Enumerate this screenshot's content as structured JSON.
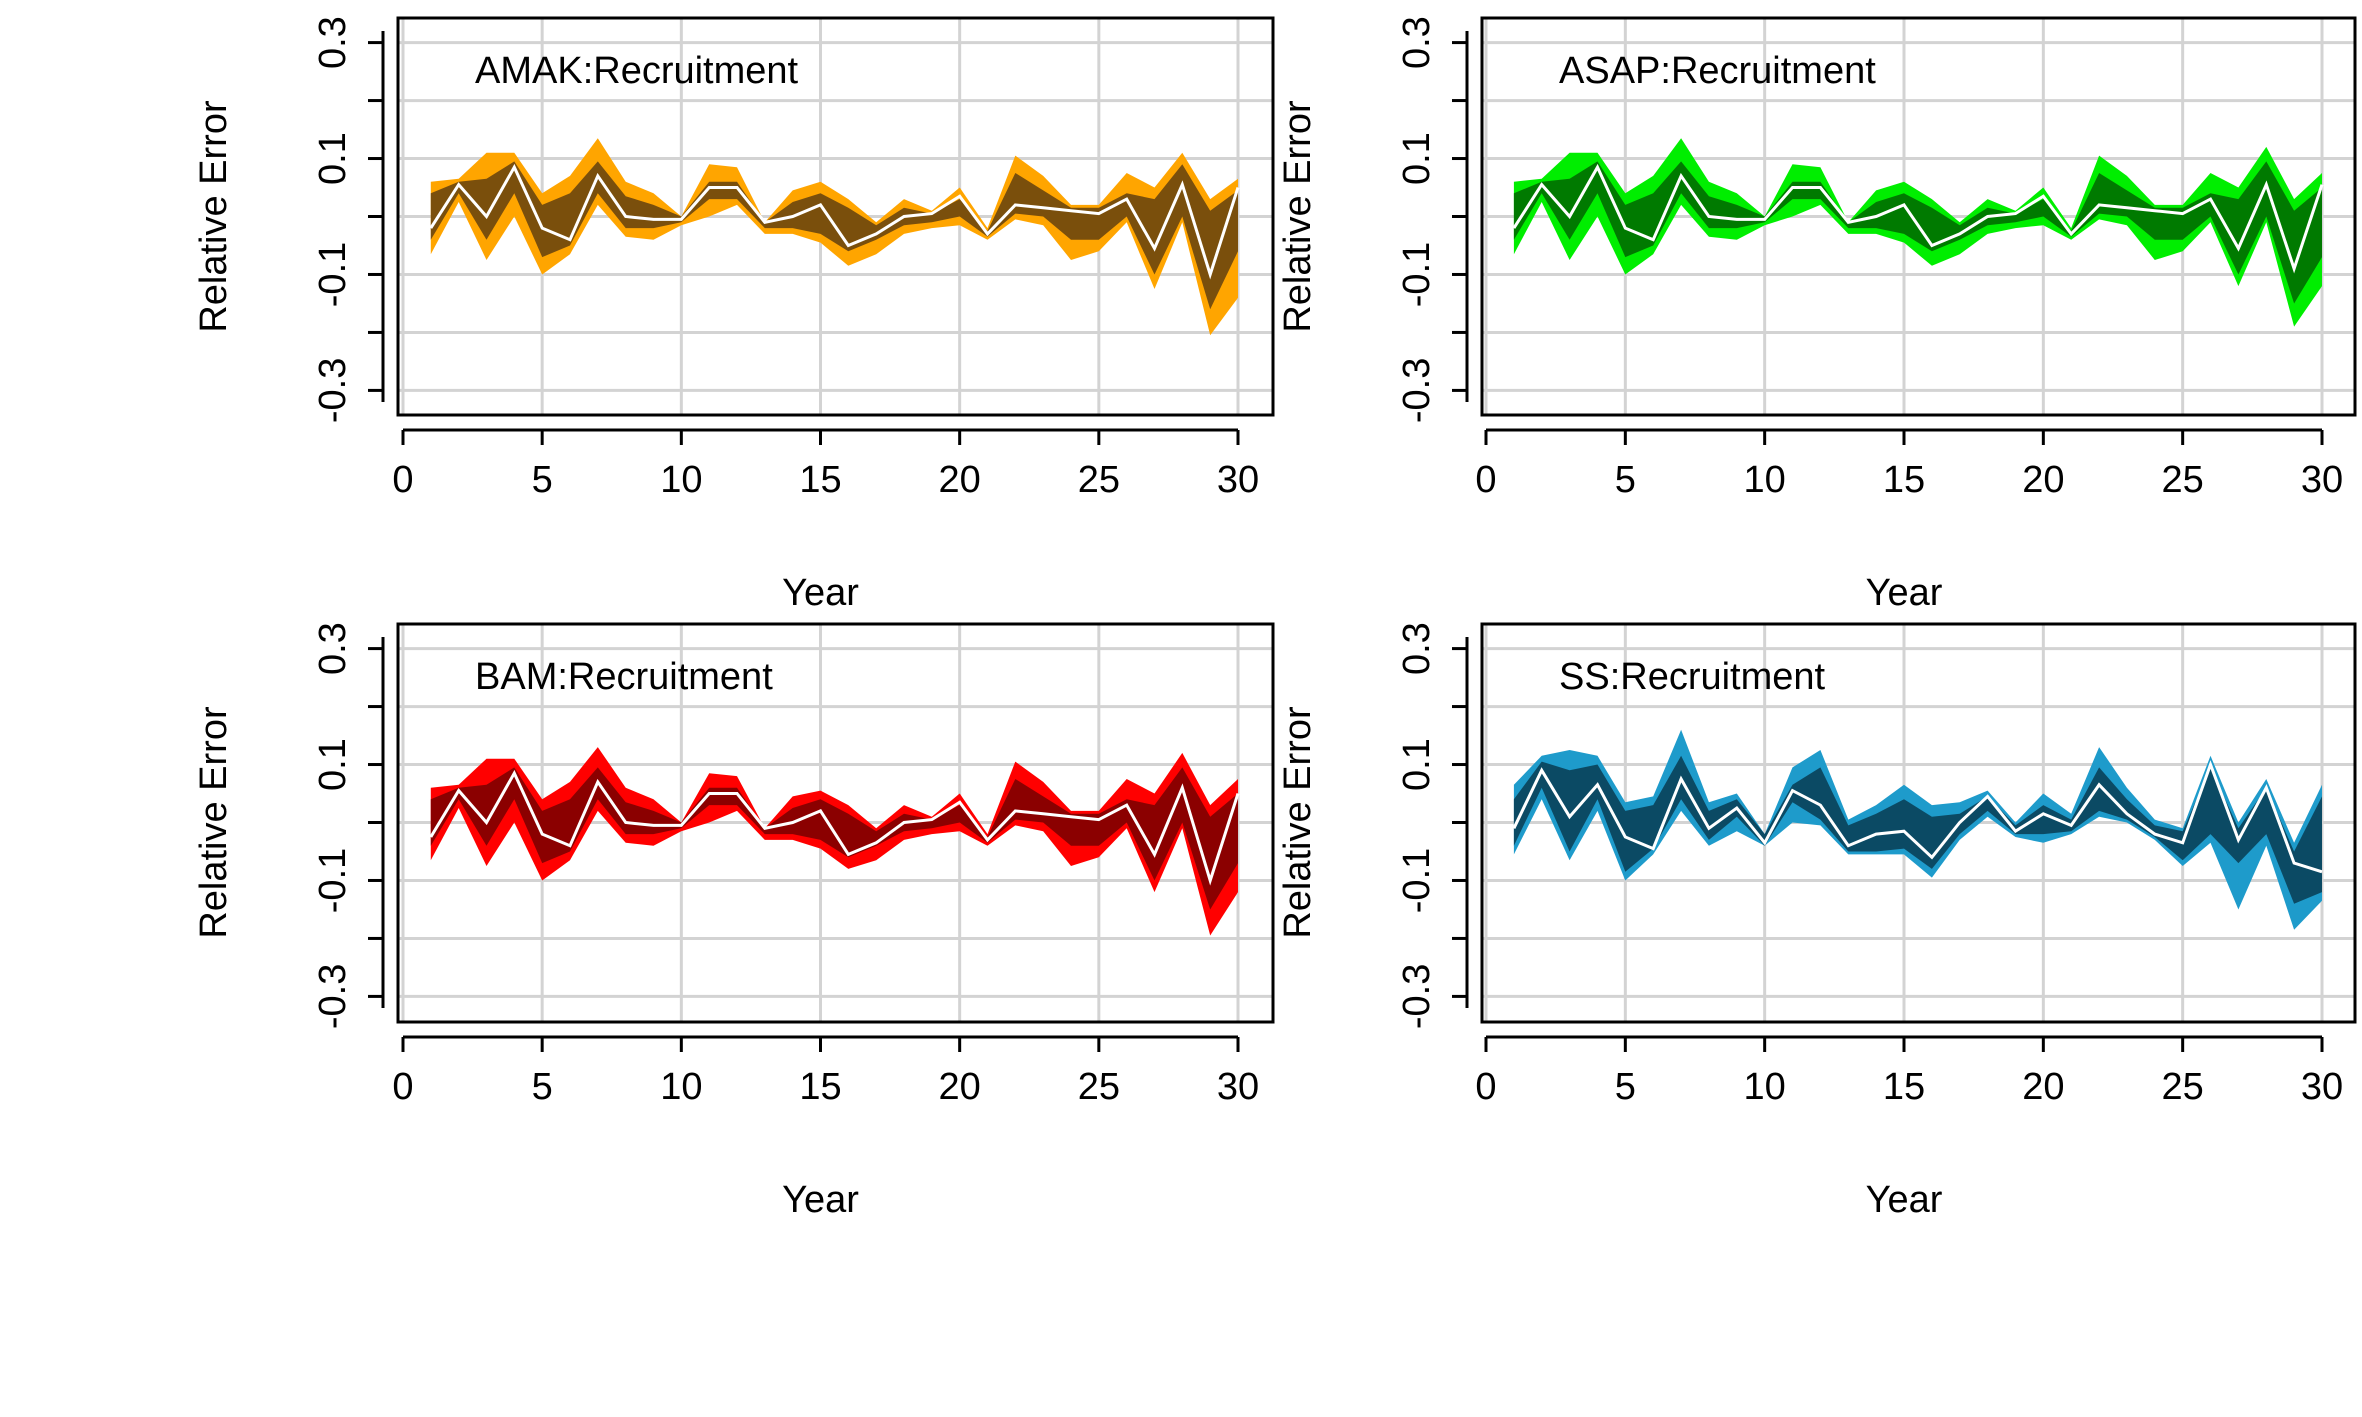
{
  "figure": {
    "background": "#ffffff",
    "grid_color": "#d3d3d3",
    "median_line_color": "#ffffff"
  },
  "chart_data": [
    {
      "type": "area",
      "title": "AMAK:Recruitment",
      "xlabel": "Year",
      "ylabel": "Relative Error",
      "xlim": [
        0,
        30
      ],
      "ylim": [
        -0.32,
        0.32
      ],
      "xticks": [
        "0",
        "5",
        "10",
        "15",
        "20",
        "25",
        "30"
      ],
      "yticks": [
        "-0.3",
        "-0.1",
        "0.1",
        "0.3"
      ],
      "grid": true,
      "colors": {
        "outer": "#FFA500",
        "inner": "#7A4F0C",
        "median": "#ffffff"
      },
      "x": [
        1,
        2,
        3,
        4,
        5,
        6,
        7,
        8,
        9,
        10,
        11,
        12,
        13,
        14,
        15,
        16,
        17,
        18,
        19,
        20,
        21,
        22,
        23,
        24,
        25,
        26,
        27,
        28,
        29,
        30
      ],
      "outer_upper": [
        0.06,
        0.065,
        0.11,
        0.11,
        0.04,
        0.07,
        0.135,
        0.06,
        0.04,
        0.0,
        0.09,
        0.085,
        -0.01,
        0.045,
        0.06,
        0.03,
        -0.01,
        0.03,
        0.01,
        0.05,
        -0.02,
        0.105,
        0.07,
        0.02,
        0.02,
        0.075,
        0.05,
        0.11,
        0.03,
        0.065
      ],
      "inner_upper": [
        0.04,
        0.06,
        0.065,
        0.095,
        0.02,
        0.04,
        0.095,
        0.035,
        0.02,
        0.0,
        0.06,
        0.06,
        -0.01,
        0.025,
        0.04,
        0.015,
        -0.015,
        0.015,
        0.005,
        0.03,
        -0.025,
        0.075,
        0.045,
        0.015,
        0.015,
        0.04,
        0.03,
        0.09,
        0.01,
        0.045
      ],
      "median": [
        -0.02,
        0.055,
        0.0,
        0.085,
        -0.02,
        -0.04,
        0.07,
        0.0,
        -0.005,
        -0.005,
        0.05,
        0.05,
        -0.01,
        0.0,
        0.02,
        -0.05,
        -0.03,
        0.0,
        0.005,
        0.035,
        -0.03,
        0.02,
        0.015,
        0.01,
        0.005,
        0.03,
        -0.055,
        0.055,
        -0.1,
        0.05
      ],
      "inner_lower": [
        -0.04,
        0.04,
        -0.04,
        0.04,
        -0.07,
        -0.05,
        0.04,
        -0.02,
        -0.02,
        -0.01,
        0.03,
        0.03,
        -0.02,
        -0.02,
        -0.03,
        -0.06,
        -0.04,
        -0.015,
        -0.01,
        0.0,
        -0.035,
        0.005,
        0.0,
        -0.04,
        -0.04,
        0.0,
        -0.1,
        0.0,
        -0.16,
        -0.06
      ],
      "outer_lower": [
        -0.065,
        0.025,
        -0.075,
        0.0,
        -0.1,
        -0.065,
        0.02,
        -0.035,
        -0.04,
        -0.015,
        0.0,
        0.02,
        -0.03,
        -0.03,
        -0.045,
        -0.085,
        -0.065,
        -0.03,
        -0.02,
        -0.015,
        -0.04,
        -0.005,
        -0.015,
        -0.075,
        -0.06,
        -0.01,
        -0.125,
        -0.01,
        -0.205,
        -0.14
      ]
    },
    {
      "type": "area",
      "title": "ASAP:Recruitment",
      "xlabel": "Year",
      "ylabel": "Relative Error",
      "xlim": [
        0,
        30
      ],
      "ylim": [
        -0.32,
        0.32
      ],
      "xticks": [
        "0",
        "5",
        "10",
        "15",
        "20",
        "25",
        "30"
      ],
      "yticks": [
        "-0.3",
        "-0.1",
        "0.1",
        "0.3"
      ],
      "grid": true,
      "colors": {
        "outer": "#00EE00",
        "inner": "#007A00",
        "median": "#ffffff"
      },
      "x": [
        1,
        2,
        3,
        4,
        5,
        6,
        7,
        8,
        9,
        10,
        11,
        12,
        13,
        14,
        15,
        16,
        17,
        18,
        19,
        20,
        21,
        22,
        23,
        24,
        25,
        26,
        27,
        28,
        29,
        30
      ],
      "outer_upper": [
        0.06,
        0.065,
        0.11,
        0.11,
        0.04,
        0.07,
        0.135,
        0.06,
        0.04,
        0.0,
        0.09,
        0.085,
        -0.01,
        0.045,
        0.06,
        0.03,
        -0.01,
        0.03,
        0.01,
        0.05,
        -0.02,
        0.105,
        0.07,
        0.02,
        0.02,
        0.075,
        0.05,
        0.12,
        0.03,
        0.075
      ],
      "inner_upper": [
        0.04,
        0.06,
        0.065,
        0.095,
        0.02,
        0.04,
        0.095,
        0.035,
        0.02,
        0.0,
        0.06,
        0.06,
        -0.01,
        0.025,
        0.04,
        0.015,
        -0.015,
        0.015,
        0.005,
        0.03,
        -0.025,
        0.075,
        0.045,
        0.015,
        0.015,
        0.04,
        0.03,
        0.095,
        0.01,
        0.05
      ],
      "median": [
        -0.02,
        0.055,
        0.0,
        0.085,
        -0.02,
        -0.04,
        0.07,
        0.0,
        -0.005,
        -0.005,
        0.05,
        0.05,
        -0.01,
        0.0,
        0.02,
        -0.05,
        -0.03,
        0.0,
        0.005,
        0.035,
        -0.03,
        0.02,
        0.015,
        0.01,
        0.005,
        0.03,
        -0.055,
        0.055,
        -0.09,
        0.055
      ],
      "inner_lower": [
        -0.04,
        0.04,
        -0.04,
        0.04,
        -0.07,
        -0.05,
        0.04,
        -0.02,
        -0.02,
        -0.01,
        0.03,
        0.03,
        -0.02,
        -0.02,
        -0.03,
        -0.06,
        -0.04,
        -0.015,
        -0.01,
        0.0,
        -0.035,
        0.005,
        0.0,
        -0.04,
        -0.04,
        0.0,
        -0.1,
        0.0,
        -0.15,
        -0.07
      ],
      "outer_lower": [
        -0.065,
        0.025,
        -0.075,
        0.0,
        -0.1,
        -0.065,
        0.02,
        -0.035,
        -0.04,
        -0.015,
        0.0,
        0.02,
        -0.03,
        -0.03,
        -0.045,
        -0.085,
        -0.065,
        -0.03,
        -0.02,
        -0.015,
        -0.04,
        -0.005,
        -0.015,
        -0.075,
        -0.06,
        -0.01,
        -0.12,
        -0.01,
        -0.19,
        -0.12
      ]
    },
    {
      "type": "area",
      "title": "BAM:Recruitment",
      "xlabel": "Year",
      "ylabel": "Relative Error",
      "xlim": [
        0,
        30
      ],
      "ylim": [
        -0.32,
        0.32
      ],
      "xticks": [
        "0",
        "5",
        "10",
        "15",
        "20",
        "25",
        "30"
      ],
      "yticks": [
        "-0.3",
        "-0.1",
        "0.1",
        "0.3"
      ],
      "grid": true,
      "colors": {
        "outer": "#FF0000",
        "inner": "#8B0000",
        "median": "#ffffff"
      },
      "x": [
        1,
        2,
        3,
        4,
        5,
        6,
        7,
        8,
        9,
        10,
        11,
        12,
        13,
        14,
        15,
        16,
        17,
        18,
        19,
        20,
        21,
        22,
        23,
        24,
        25,
        26,
        27,
        28,
        29,
        30
      ],
      "outer_upper": [
        0.06,
        0.065,
        0.11,
        0.11,
        0.04,
        0.07,
        0.13,
        0.06,
        0.04,
        0.0,
        0.085,
        0.08,
        -0.01,
        0.045,
        0.055,
        0.03,
        -0.01,
        0.03,
        0.01,
        0.05,
        -0.02,
        0.105,
        0.07,
        0.02,
        0.02,
        0.075,
        0.05,
        0.12,
        0.03,
        0.075
      ],
      "inner_upper": [
        0.04,
        0.06,
        0.065,
        0.095,
        0.02,
        0.04,
        0.095,
        0.035,
        0.02,
        0.0,
        0.06,
        0.06,
        -0.01,
        0.025,
        0.04,
        0.015,
        -0.015,
        0.015,
        0.005,
        0.03,
        -0.025,
        0.075,
        0.045,
        0.015,
        0.015,
        0.04,
        0.03,
        0.095,
        0.01,
        0.05
      ],
      "median": [
        -0.025,
        0.055,
        0.0,
        0.085,
        -0.02,
        -0.04,
        0.07,
        0.0,
        -0.005,
        -0.005,
        0.05,
        0.05,
        -0.01,
        0.0,
        0.02,
        -0.055,
        -0.035,
        0.0,
        0.005,
        0.035,
        -0.03,
        0.02,
        0.015,
        0.01,
        0.005,
        0.03,
        -0.055,
        0.06,
        -0.1,
        0.05
      ],
      "inner_lower": [
        -0.04,
        0.04,
        -0.04,
        0.04,
        -0.07,
        -0.05,
        0.04,
        -0.02,
        -0.02,
        -0.01,
        0.03,
        0.03,
        -0.02,
        -0.02,
        -0.03,
        -0.06,
        -0.04,
        -0.015,
        -0.01,
        0.0,
        -0.035,
        0.005,
        0.0,
        -0.04,
        -0.04,
        0.0,
        -0.1,
        0.0,
        -0.15,
        -0.07
      ],
      "outer_lower": [
        -0.065,
        0.025,
        -0.075,
        0.0,
        -0.1,
        -0.065,
        0.02,
        -0.035,
        -0.04,
        -0.015,
        0.0,
        0.02,
        -0.03,
        -0.03,
        -0.045,
        -0.08,
        -0.065,
        -0.03,
        -0.02,
        -0.015,
        -0.04,
        -0.005,
        -0.015,
        -0.075,
        -0.06,
        -0.01,
        -0.12,
        -0.01,
        -0.195,
        -0.12
      ]
    },
    {
      "type": "area",
      "title": "SS:Recruitment",
      "xlabel": "Year",
      "ylabel": "Relative Error",
      "xlim": [
        0,
        30
      ],
      "ylim": [
        -0.32,
        0.32
      ],
      "xticks": [
        "0",
        "5",
        "10",
        "15",
        "20",
        "25",
        "30"
      ],
      "yticks": [
        "-0.3",
        "-0.1",
        "0.1",
        "0.3"
      ],
      "grid": true,
      "colors": {
        "outer": "#1E9BCB",
        "inner": "#0B4A64",
        "median": "#ffffff"
      },
      "x": [
        1,
        2,
        3,
        4,
        5,
        6,
        7,
        8,
        9,
        10,
        11,
        12,
        13,
        14,
        15,
        16,
        17,
        18,
        19,
        20,
        21,
        22,
        23,
        24,
        25,
        26,
        27,
        28,
        29,
        30
      ],
      "outer_upper": [
        0.065,
        0.115,
        0.125,
        0.115,
        0.035,
        0.045,
        0.16,
        0.035,
        0.05,
        -0.02,
        0.095,
        0.125,
        0.005,
        0.03,
        0.065,
        0.03,
        0.035,
        0.055,
        0.0,
        0.05,
        0.015,
        0.13,
        0.06,
        0.005,
        -0.01,
        0.115,
        0.0,
        0.075,
        -0.035,
        0.065
      ],
      "inner_upper": [
        0.04,
        0.105,
        0.09,
        0.1,
        0.02,
        0.03,
        0.115,
        0.02,
        0.04,
        -0.02,
        0.065,
        0.095,
        -0.005,
        0.015,
        0.04,
        0.01,
        0.015,
        0.045,
        -0.005,
        0.03,
        0.005,
        0.095,
        0.04,
        -0.005,
        -0.015,
        0.095,
        -0.01,
        0.06,
        -0.05,
        0.045
      ],
      "median": [
        -0.01,
        0.09,
        0.01,
        0.065,
        -0.025,
        -0.045,
        0.075,
        -0.01,
        0.025,
        -0.035,
        0.055,
        0.03,
        -0.04,
        -0.02,
        -0.015,
        -0.06,
        0.0,
        0.045,
        -0.015,
        0.015,
        -0.005,
        0.065,
        0.015,
        -0.02,
        -0.035,
        0.1,
        -0.03,
        0.06,
        -0.07,
        -0.085
      ],
      "inner_lower": [
        -0.04,
        0.06,
        -0.05,
        0.04,
        -0.085,
        -0.045,
        0.04,
        -0.03,
        0.01,
        -0.04,
        0.035,
        0.005,
        -0.05,
        -0.05,
        -0.045,
        -0.08,
        -0.02,
        0.02,
        -0.02,
        -0.02,
        -0.015,
        0.02,
        0.005,
        -0.025,
        -0.065,
        -0.02,
        -0.07,
        -0.02,
        -0.14,
        -0.12
      ],
      "outer_lower": [
        -0.055,
        0.04,
        -0.065,
        0.02,
        -0.1,
        -0.055,
        0.02,
        -0.04,
        -0.015,
        -0.04,
        0.0,
        -0.005,
        -0.055,
        -0.055,
        -0.055,
        -0.095,
        -0.03,
        0.01,
        -0.025,
        -0.035,
        -0.02,
        0.01,
        0.0,
        -0.03,
        -0.075,
        -0.035,
        -0.15,
        -0.04,
        -0.185,
        -0.135
      ]
    }
  ]
}
